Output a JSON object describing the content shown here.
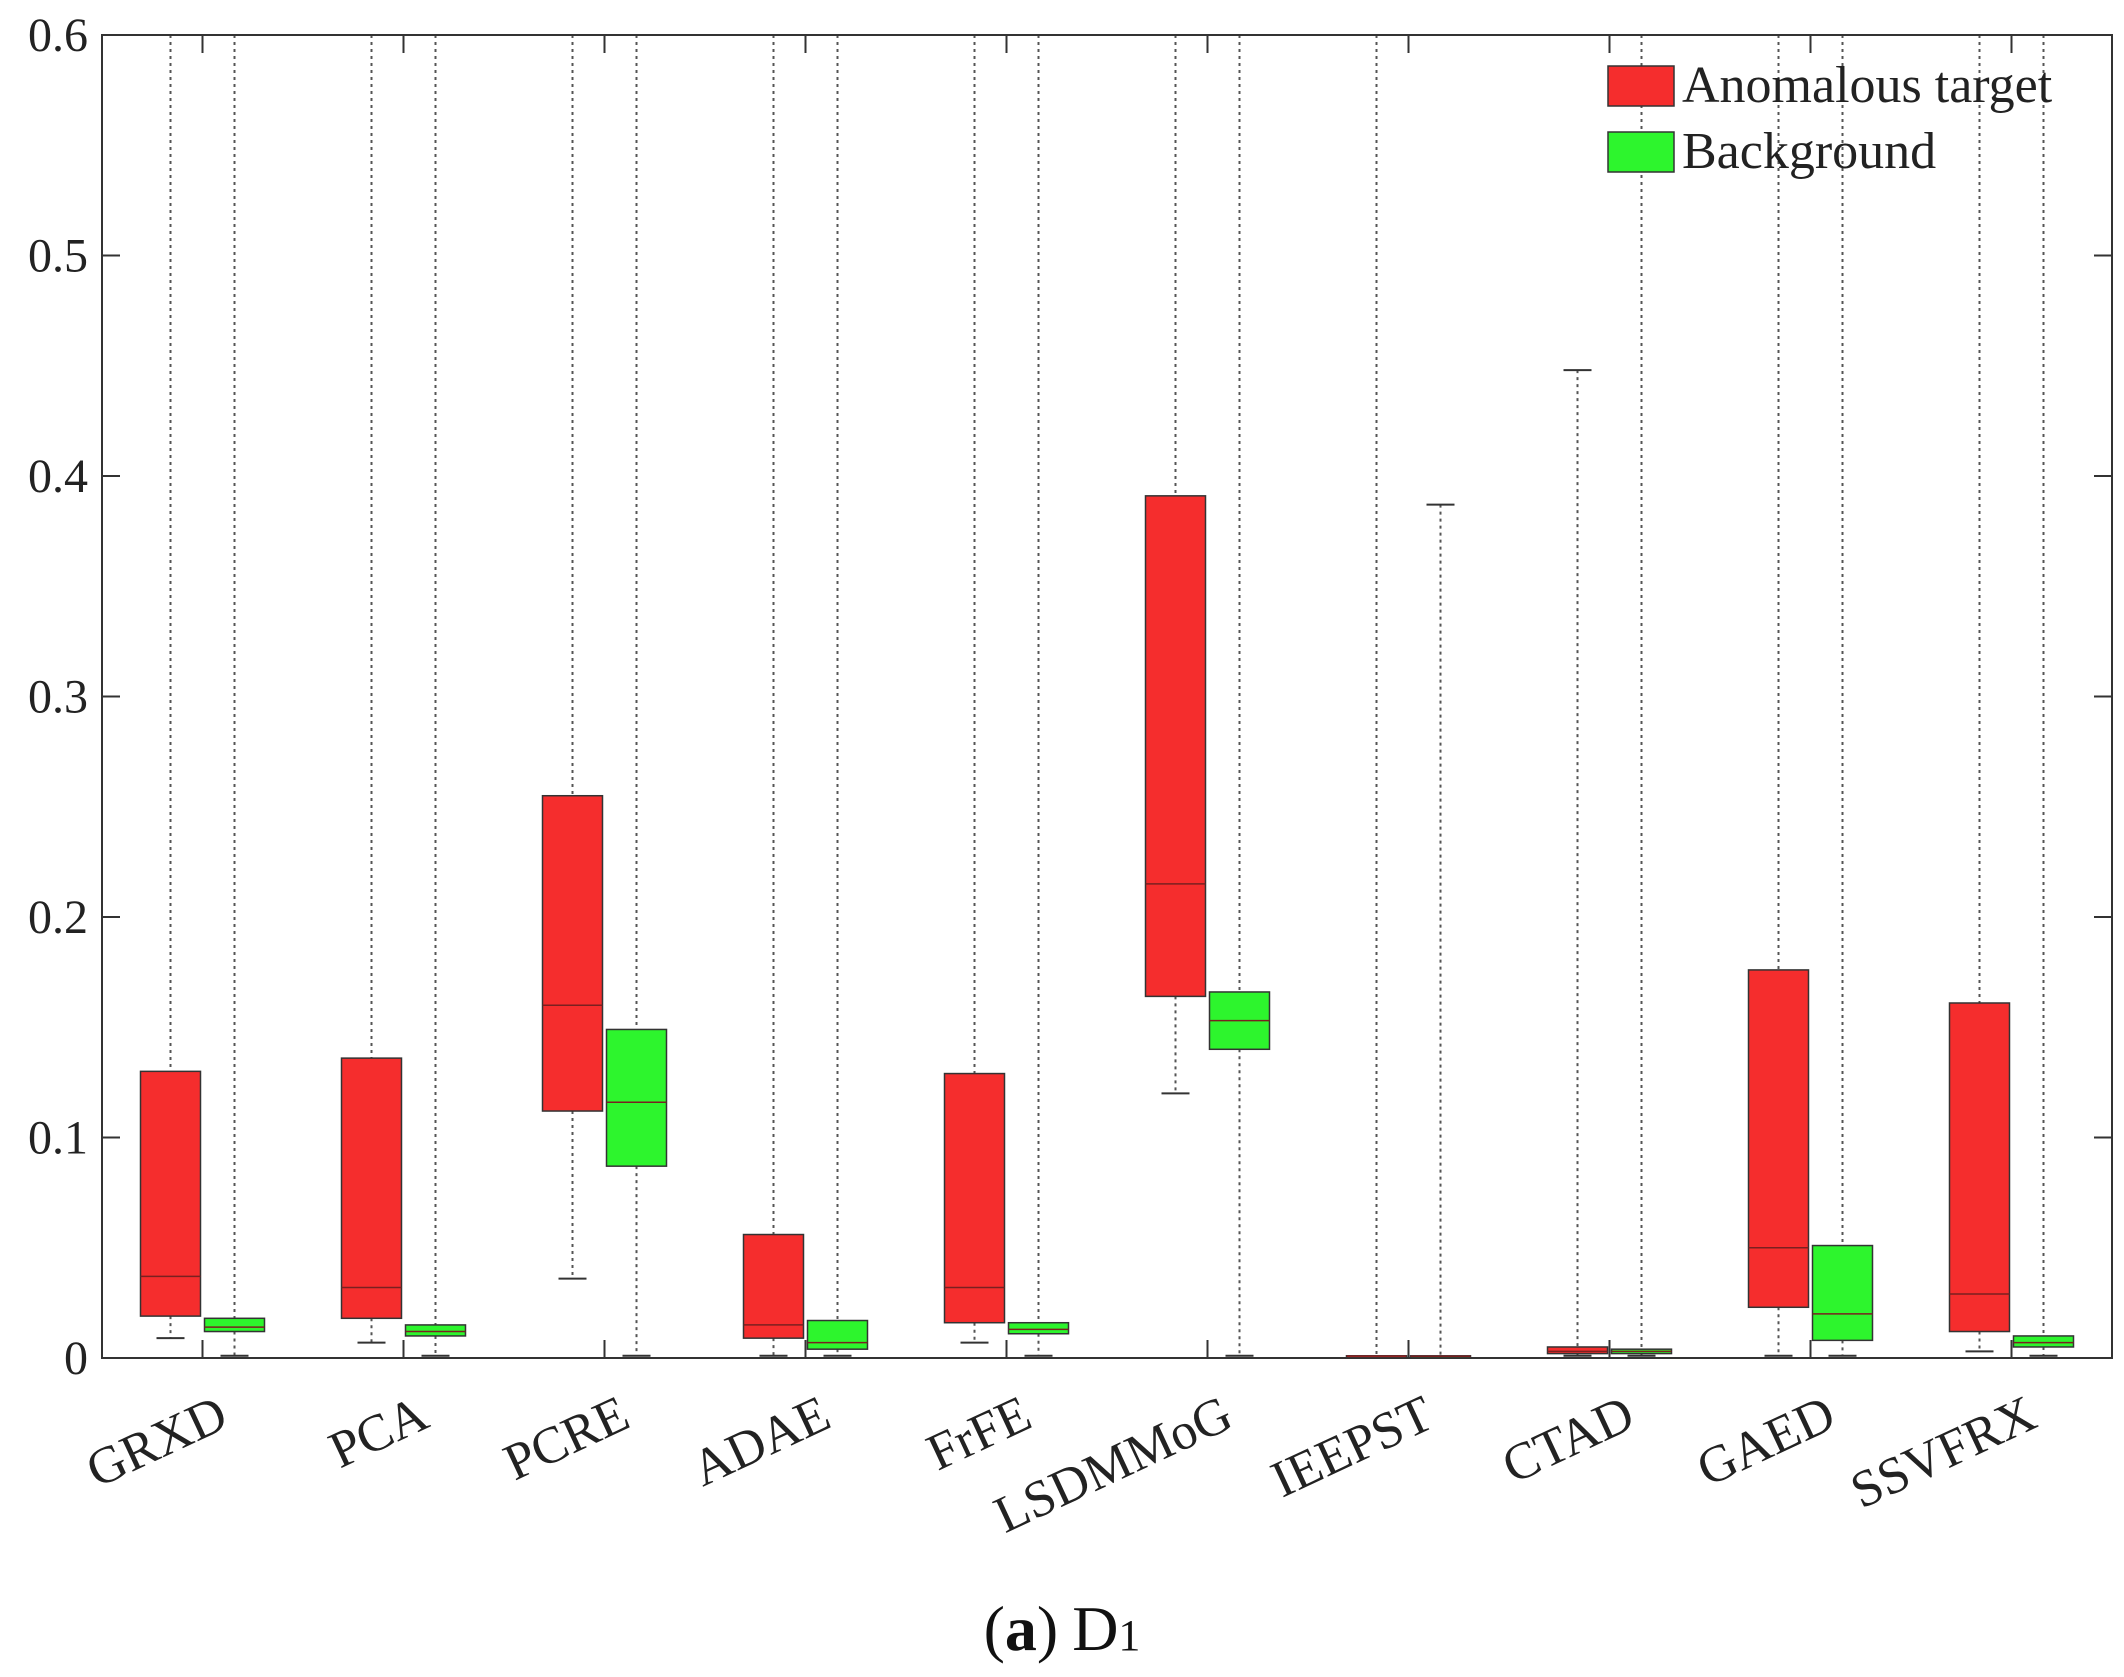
{
  "caption": {
    "open": "(",
    "letter": "a",
    "close": ")",
    "dataset": "D",
    "subscript": "1"
  },
  "chart_data": {
    "type": "box",
    "ylim": [
      0,
      0.6
    ],
    "yticks": [
      "0",
      "0.1",
      "0.2",
      "0.3",
      "0.4",
      "0.5",
      "0.6"
    ],
    "grid": false,
    "legend_position": "top-right",
    "categories": [
      "GRXD",
      "PCA",
      "PCRE",
      "ADAE",
      "FrFE",
      "LSDMMoG",
      "IEEPST",
      "CTAD",
      "GAED",
      "SSVFRX"
    ],
    "series": [
      {
        "name": "Anomalous target",
        "color": "#f52d2d",
        "boxes": [
          {
            "min": 0.009,
            "q1": 0.019,
            "median": 0.037,
            "q3": 0.13,
            "max": 0.6
          },
          {
            "min": 0.007,
            "q1": 0.018,
            "median": 0.032,
            "q3": 0.136,
            "max": 0.6
          },
          {
            "min": 0.036,
            "q1": 0.112,
            "median": 0.16,
            "q3": 0.255,
            "max": 0.6
          },
          {
            "min": 0.001,
            "q1": 0.009,
            "median": 0.015,
            "q3": 0.056,
            "max": 0.6
          },
          {
            "min": 0.007,
            "q1": 0.016,
            "median": 0.032,
            "q3": 0.129,
            "max": 0.6
          },
          {
            "min": 0.12,
            "q1": 0.164,
            "median": 0.215,
            "q3": 0.391,
            "max": 0.6
          },
          {
            "min": 0.0005,
            "q1": 0.0008,
            "median": 0.0009,
            "q3": 0.001,
            "max": 0.6
          },
          {
            "min": 0.001,
            "q1": 0.002,
            "median": 0.003,
            "q3": 0.005,
            "max": 0.448
          },
          {
            "min": 0.001,
            "q1": 0.023,
            "median": 0.05,
            "q3": 0.176,
            "max": 0.6
          },
          {
            "min": 0.003,
            "q1": 0.012,
            "median": 0.029,
            "q3": 0.161,
            "max": 0.6
          }
        ]
      },
      {
        "name": "Background",
        "color": "#2df52d",
        "boxes": [
          {
            "min": 0.001,
            "q1": 0.012,
            "median": 0.014,
            "q3": 0.018,
            "max": 0.6
          },
          {
            "min": 0.001,
            "q1": 0.01,
            "median": 0.012,
            "q3": 0.015,
            "max": 0.6
          },
          {
            "min": 0.001,
            "q1": 0.087,
            "median": 0.116,
            "q3": 0.149,
            "max": 0.6
          },
          {
            "min": 0.001,
            "q1": 0.004,
            "median": 0.007,
            "q3": 0.017,
            "max": 0.6
          },
          {
            "min": 0.001,
            "q1": 0.011,
            "median": 0.013,
            "q3": 0.016,
            "max": 0.6
          },
          {
            "min": 0.001,
            "q1": 0.14,
            "median": 0.153,
            "q3": 0.166,
            "max": 0.6
          },
          {
            "min": 0.0005,
            "q1": 0.0007,
            "median": 0.0008,
            "q3": 0.001,
            "max": 0.387
          },
          {
            "min": 0.001,
            "q1": 0.002,
            "median": 0.003,
            "q3": 0.004,
            "max": 0.6
          },
          {
            "min": 0.001,
            "q1": 0.008,
            "median": 0.02,
            "q3": 0.051,
            "max": 0.6
          },
          {
            "min": 0.001,
            "q1": 0.005,
            "median": 0.007,
            "q3": 0.01,
            "max": 0.6
          }
        ]
      }
    ]
  }
}
